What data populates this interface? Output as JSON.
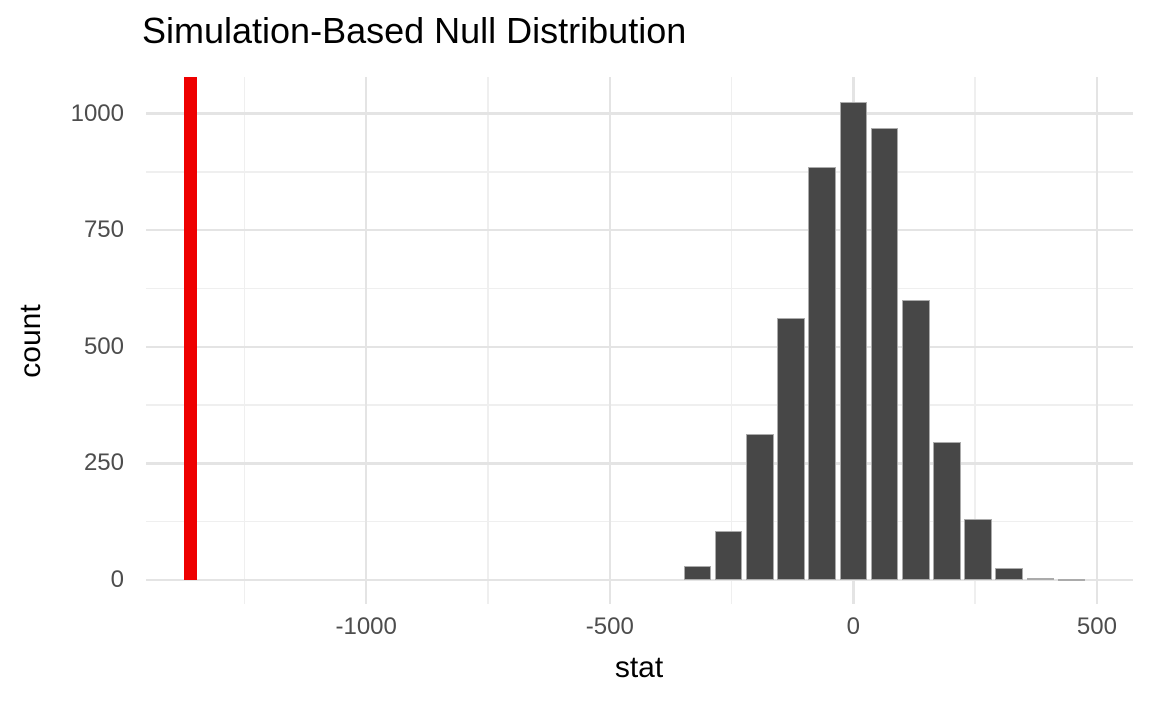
{
  "chart_data": {
    "type": "bar",
    "subtype": "histogram",
    "title": "Simulation-Based Null Distribution",
    "xlabel": "stat",
    "ylabel": "count",
    "grid": true,
    "legend_position": "none",
    "bin_width": 64,
    "bars": [
      {
        "center": -320,
        "count": 30
      },
      {
        "center": -256,
        "count": 105
      },
      {
        "center": -192,
        "count": 313
      },
      {
        "center": -128,
        "count": 562
      },
      {
        "center": -64,
        "count": 885
      },
      {
        "center": 0,
        "count": 1024
      },
      {
        "center": 64,
        "count": 969
      },
      {
        "center": 128,
        "count": 601
      },
      {
        "center": 192,
        "count": 295
      },
      {
        "center": 256,
        "count": 130
      },
      {
        "center": 320,
        "count": 25
      },
      {
        "center": 384,
        "count": 5
      },
      {
        "center": 448,
        "count": 1
      }
    ],
    "observed_stat_line": {
      "value": -1360,
      "color": "#ee0000"
    },
    "x_axis": {
      "major_ticks": [
        -1000,
        -500,
        0,
        500
      ],
      "tick_labels": [
        "-1000",
        "-500",
        "0",
        "500"
      ],
      "minor_gridlines": [
        -1250,
        -750,
        -250,
        250
      ],
      "range": [
        -1452,
        574
      ]
    },
    "y_axis": {
      "major_ticks": [
        0,
        250,
        500,
        750,
        1000
      ],
      "tick_labels": [
        "0",
        "250",
        "500",
        "750",
        "1000"
      ],
      "minor_gridlines": [
        125,
        375,
        625,
        875
      ],
      "range": [
        -51.5,
        1078.5
      ]
    },
    "colors": {
      "background": "#ffffff",
      "bar_fill": "#474747",
      "bar_border": "#ababab",
      "gridline_major": "#e4e4e4",
      "gridline_minor": "#efefef",
      "observed_line": "#ee0000",
      "tick_label_text": "#4d4d4d",
      "title_text": "#000000",
      "axis_title_text": "#000000"
    }
  }
}
